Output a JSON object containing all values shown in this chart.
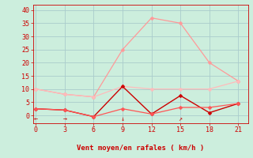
{
  "x": [
    0,
    3,
    6,
    9,
    12,
    15,
    18,
    21
  ],
  "line1_y": [
    10,
    8,
    7,
    25,
    37,
    35,
    20,
    13
  ],
  "line2_y": [
    10,
    8,
    7,
    11,
    10,
    10,
    10,
    13
  ],
  "line3_y": [
    2.5,
    2,
    -0.5,
    11,
    0.5,
    7.5,
    1,
    4.5
  ],
  "line4_y": [
    2.5,
    2,
    -0.5,
    2.5,
    0.5,
    3,
    3,
    4.5
  ],
  "line1_color": "#ff9999",
  "line2_color": "#ffbbbb",
  "line3_color": "#cc0000",
  "line4_color": "#ff5555",
  "bg_color": "#cceedd",
  "grid_color": "#aacccc",
  "xlabel": "Vent moyen/en rafales ( km/h )",
  "xlabel_color": "#cc0000",
  "ylabel_ticks": [
    0,
    5,
    10,
    15,
    20,
    25,
    30,
    35,
    40
  ],
  "xticks": [
    0,
    3,
    6,
    9,
    12,
    15,
    18,
    21
  ],
  "ylim": [
    -3,
    42
  ],
  "xlim": [
    -0.3,
    22
  ],
  "arrows": [
    {
      "x": 0,
      "text": "←"
    },
    {
      "x": 3,
      "text": "→"
    },
    {
      "x": 9,
      "text": "↓"
    },
    {
      "x": 15,
      "text": "↗"
    }
  ]
}
